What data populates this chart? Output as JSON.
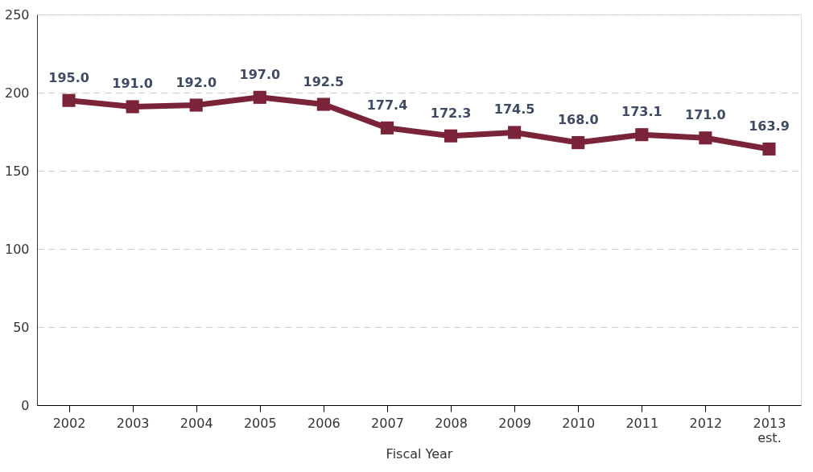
{
  "chart_data": {
    "type": "line",
    "xlabel": "Fiscal Year",
    "categories": [
      "2002",
      "2003",
      "2004",
      "2005",
      "2006",
      "2007",
      "2008",
      "2009",
      "2010",
      "2011",
      "2012",
      "2013 est."
    ],
    "series": [
      {
        "color": "#7b2439",
        "values": [
          195.0,
          191.0,
          192.0,
          197.0,
          192.5,
          177.4,
          172.3,
          174.5,
          168.0,
          173.1,
          171.0,
          163.9
        ],
        "value_labels": [
          "195.0",
          "191.0",
          "192.0",
          "197.0",
          "192.5",
          "177.4",
          "172.3",
          "174.5",
          "168.0",
          "173.1",
          "171.0",
          "163.9"
        ]
      }
    ],
    "ylim": [
      0,
      250
    ],
    "yticks": [
      0,
      50,
      100,
      150,
      200,
      250
    ],
    "grid": "y",
    "marker": "square",
    "line_style": "solid"
  }
}
